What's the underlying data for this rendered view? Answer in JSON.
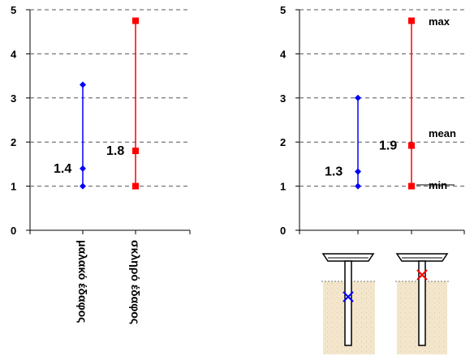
{
  "chart_data": [
    {
      "type": "range",
      "ylim": [
        0,
        5
      ],
      "yticks": [
        0,
        1,
        2,
        3,
        4,
        5
      ],
      "grid": "dashed horizontal",
      "categories": [
        "μαλακό έδαφος",
        "σκληρό έδαφος"
      ],
      "series": [
        {
          "category": "μαλακό έδαφος",
          "min": 1.0,
          "mean": 1.4,
          "max": 3.3,
          "color": "#0000ff",
          "marker": "diamond",
          "label": "1.4"
        },
        {
          "category": "σκληρό έδαφος",
          "min": 1.0,
          "mean": 1.8,
          "max": 4.75,
          "color": "#ff0000",
          "marker": "square",
          "label": "1.8"
        }
      ]
    },
    {
      "type": "range",
      "ylim": [
        0,
        5
      ],
      "yticks": [
        0,
        1,
        2,
        3,
        4,
        5
      ],
      "grid": "dashed horizontal",
      "annotations": [
        "max",
        "mean",
        "min"
      ],
      "series": [
        {
          "min": 1.0,
          "mean": 1.33,
          "max": 3.0,
          "color": "#0000ff",
          "marker": "diamond",
          "label": "1.3"
        },
        {
          "min": 1.0,
          "mean": 1.92,
          "max": 4.75,
          "color": "#ff0000",
          "marker": "square",
          "label": "1.9"
        }
      ]
    }
  ],
  "illustrations": [
    {
      "name": "soft-soil-pile",
      "cross_color": "#0000ff"
    },
    {
      "name": "hard-soil-pile",
      "cross_color": "#ff0000"
    }
  ]
}
